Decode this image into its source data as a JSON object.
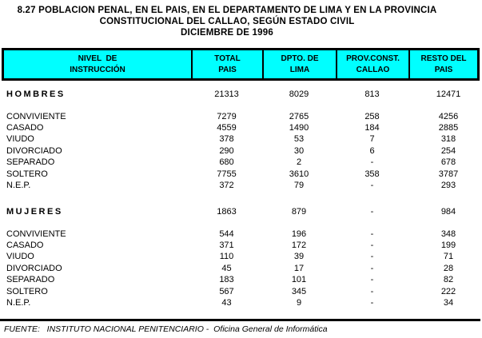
{
  "title": {
    "line1": "8.27 POBLACION PENAL, EN EL PAIS, EN EL DEPARTAMENTO DE LIMA Y EN LA PROVINCIA",
    "line2": "CONSTITUCIONAL DEL CALLAO, SEGÚN ESTADO CIVIL",
    "line3": "DICIEMBRE DE 1996"
  },
  "colors": {
    "header_bg": "#00ffff",
    "border": "#000000",
    "text": "#000000"
  },
  "table": {
    "columns": [
      {
        "line1": "NIVEL  DE",
        "line2": "INSTRUCCIÓN"
      },
      {
        "line1": "TOTAL",
        "line2": "PAIS"
      },
      {
        "line1": "DPTO. DE",
        "line2": "LIMA"
      },
      {
        "line1": "PROV.CONST.",
        "line2": "CALLAO"
      },
      {
        "line1": "RESTO DEL",
        "line2": "PAIS"
      }
    ],
    "rows": [
      {
        "type": "section",
        "label": "HOMBRES",
        "values": [
          "21313",
          "8029",
          "813",
          "12471"
        ]
      },
      {
        "type": "data",
        "label": "CONVIVIENTE",
        "values": [
          "7279",
          "2765",
          "258",
          "4256"
        ]
      },
      {
        "type": "data",
        "label": "CASADO",
        "values": [
          "4559",
          "1490",
          "184",
          "2885"
        ]
      },
      {
        "type": "data",
        "label": "VIUDO",
        "values": [
          "378",
          "53",
          "7",
          "318"
        ]
      },
      {
        "type": "data",
        "label": "DIVORCIADO",
        "values": [
          "290",
          "30",
          "6",
          "254"
        ]
      },
      {
        "type": "data",
        "label": "SEPARADO",
        "values": [
          "680",
          "2",
          "-",
          "678"
        ]
      },
      {
        "type": "data",
        "label": "SOLTERO",
        "values": [
          "7755",
          "3610",
          "358",
          "3787"
        ]
      },
      {
        "type": "data",
        "label": "N.E.P.",
        "values": [
          "372",
          "79",
          "-",
          "293"
        ]
      },
      {
        "type": "section",
        "label": "MUJERES",
        "values": [
          "1863",
          "879",
          "-",
          "984"
        ]
      },
      {
        "type": "data",
        "label": "CONVIVIENTE",
        "values": [
          "544",
          "196",
          "-",
          "348"
        ]
      },
      {
        "type": "data",
        "label": "CASADO",
        "values": [
          "371",
          "172",
          "-",
          "199"
        ]
      },
      {
        "type": "data",
        "label": "VIUDO",
        "values": [
          "110",
          "39",
          "-",
          "71"
        ]
      },
      {
        "type": "data",
        "label": "DIVORCIADO",
        "values": [
          "45",
          "17",
          "-",
          "28"
        ]
      },
      {
        "type": "data",
        "label": "SEPARADO",
        "values": [
          "183",
          "101",
          "-",
          "82"
        ]
      },
      {
        "type": "data",
        "label": "SOLTERO",
        "values": [
          "567",
          "345",
          "-",
          "222"
        ]
      },
      {
        "type": "data",
        "label": "N.E.P.",
        "values": [
          "43",
          "9",
          "-",
          "34"
        ]
      }
    ]
  },
  "footer": {
    "source": "FUENTE:   INSTITUTO NACIONAL PENITENCIARIO -  Oficina General de Informática"
  }
}
